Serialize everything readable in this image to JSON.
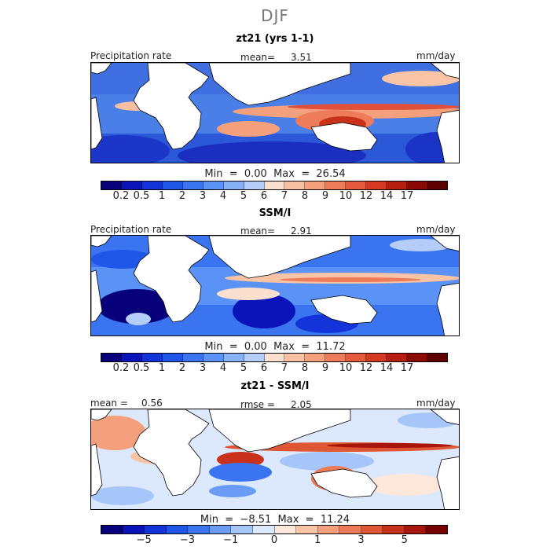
{
  "season": "DJF",
  "panels": [
    {
      "title": "zt21 (yrs 1-1)",
      "left_label": "Precipitation rate",
      "center_label": "mean=",
      "center_value": "3.51",
      "unit": "mm/day",
      "min_label": "Min  =",
      "min_value": "0.00",
      "max_label": "Max  =",
      "max_value": "26.54"
    },
    {
      "title": "SSM/I",
      "left_label": "Precipitation rate",
      "center_label": "mean=",
      "center_value": "2.91",
      "unit": "mm/day",
      "min_label": "Min  =",
      "min_value": "0.00",
      "max_label": "Max  =",
      "max_value": "11.72"
    },
    {
      "title": "zt21 - SSM/I",
      "left_label": "mean =",
      "left_value": "0.56",
      "center_label": "rmse =",
      "center_value": "2.05",
      "unit": "mm/day",
      "min_label": "Min  =",
      "min_value": "−8.51",
      "max_label": "Max  =",
      "max_value": "11.24"
    }
  ],
  "colorbars": {
    "precip": {
      "colors": [
        "#08007a",
        "#0b14b8",
        "#1234d9",
        "#1e56e8",
        "#3a74f0",
        "#5a92f5",
        "#86b0f7",
        "#b4cef9",
        "#fbe0d0",
        "#f8c0a2",
        "#f5a07c",
        "#ee7c5a",
        "#e55a3c",
        "#d43a22",
        "#b81e10",
        "#8c0a06",
        "#5e0000"
      ],
      "tick_labels": [
        "0.2",
        "0.5",
        "1",
        "2",
        "3",
        "4",
        "5",
        "6",
        "7",
        "8",
        "9",
        "10",
        "12",
        "14",
        "17"
      ]
    },
    "diff": {
      "colors": [
        "#08007a",
        "#0b14b8",
        "#1234d9",
        "#1e56e8",
        "#3a74f0",
        "#6a9cf6",
        "#a6c6f9",
        "#dce8fc",
        "#fde7da",
        "#f9c4a6",
        "#f4a07c",
        "#eb7a56",
        "#df5634",
        "#c8321a",
        "#a8160a",
        "#760000"
      ],
      "tick_labels": [
        "−5",
        "−3",
        "−1",
        "0",
        "1",
        "3",
        "5"
      ]
    }
  },
  "chart_data": [
    {
      "type": "heatmap",
      "title": "zt21 (yrs 1-1)",
      "subtitle": "DJF",
      "variable": "Precipitation rate",
      "units": "mm/day",
      "mean": 3.51,
      "min": 0.0,
      "max": 26.54,
      "colorbar_levels": [
        0.2,
        0.5,
        1,
        2,
        3,
        4,
        5,
        6,
        7,
        8,
        9,
        10,
        12,
        14,
        17
      ]
    },
    {
      "type": "heatmap",
      "title": "SSM/I",
      "subtitle": "DJF",
      "variable": "Precipitation rate",
      "units": "mm/day",
      "mean": 2.91,
      "min": 0.0,
      "max": 11.72,
      "colorbar_levels": [
        0.2,
        0.5,
        1,
        2,
        3,
        4,
        5,
        6,
        7,
        8,
        9,
        10,
        12,
        14,
        17
      ]
    },
    {
      "type": "heatmap",
      "title": "zt21 - SSM/I",
      "subtitle": "DJF",
      "units": "mm/day",
      "mean": 0.56,
      "rmse": 2.05,
      "min": -8.51,
      "max": 11.24,
      "colorbar_levels": [
        -5,
        -3,
        -1,
        0,
        1,
        3,
        5
      ]
    }
  ]
}
